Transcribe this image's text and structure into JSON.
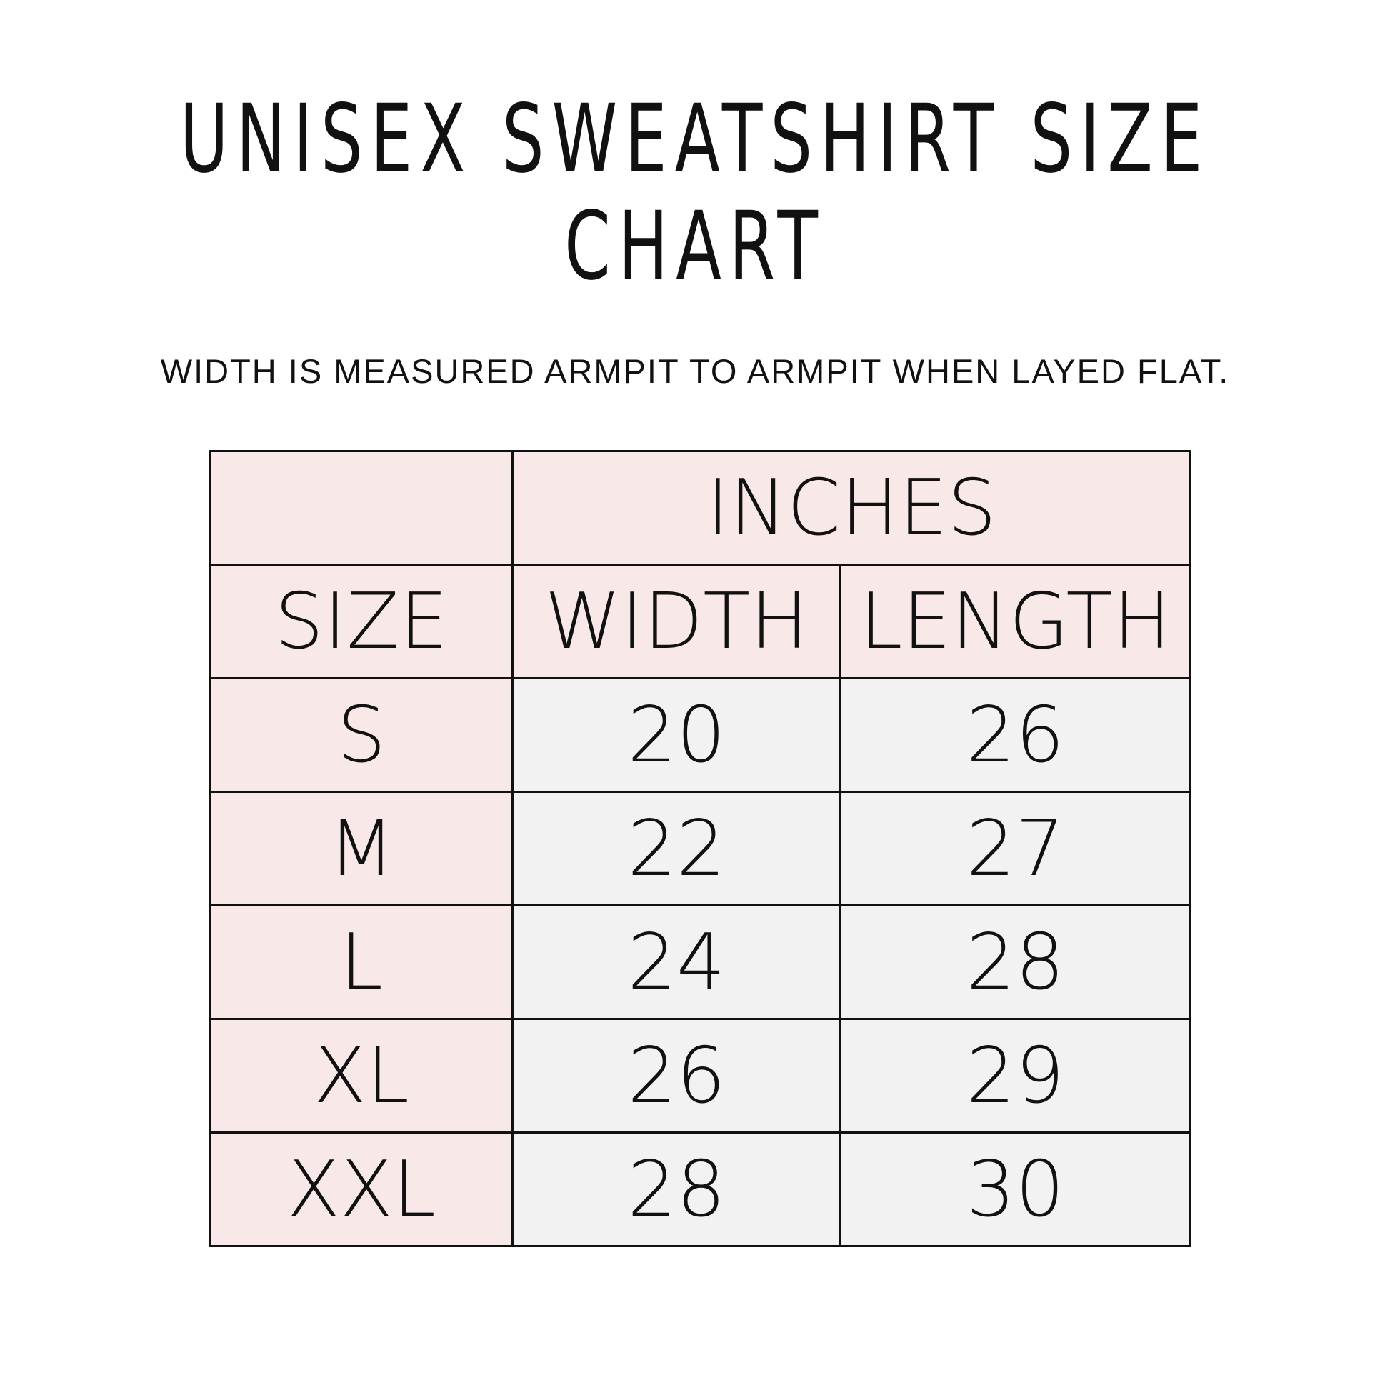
{
  "title": "UNISEX SWEATSHIRT SIZE CHART",
  "note": "WIDTH IS MEASURED ARMPIT TO ARMPIT WHEN LAYED FLAT.",
  "colors": {
    "header_bg": "#f9e8e8",
    "cell_bg": "#f2f2f2",
    "border": "#111111"
  },
  "table": {
    "unit_header": "INCHES",
    "headers": [
      "SIZE",
      "WIDTH",
      "LENGTH"
    ],
    "rows": [
      {
        "size": "S",
        "width": "20",
        "length": "26"
      },
      {
        "size": "M",
        "width": "22",
        "length": "27"
      },
      {
        "size": "L",
        "width": "24",
        "length": "28"
      },
      {
        "size": "XL",
        "width": "26",
        "length": "29"
      },
      {
        "size": "XXL",
        "width": "28",
        "length": "30"
      }
    ]
  }
}
